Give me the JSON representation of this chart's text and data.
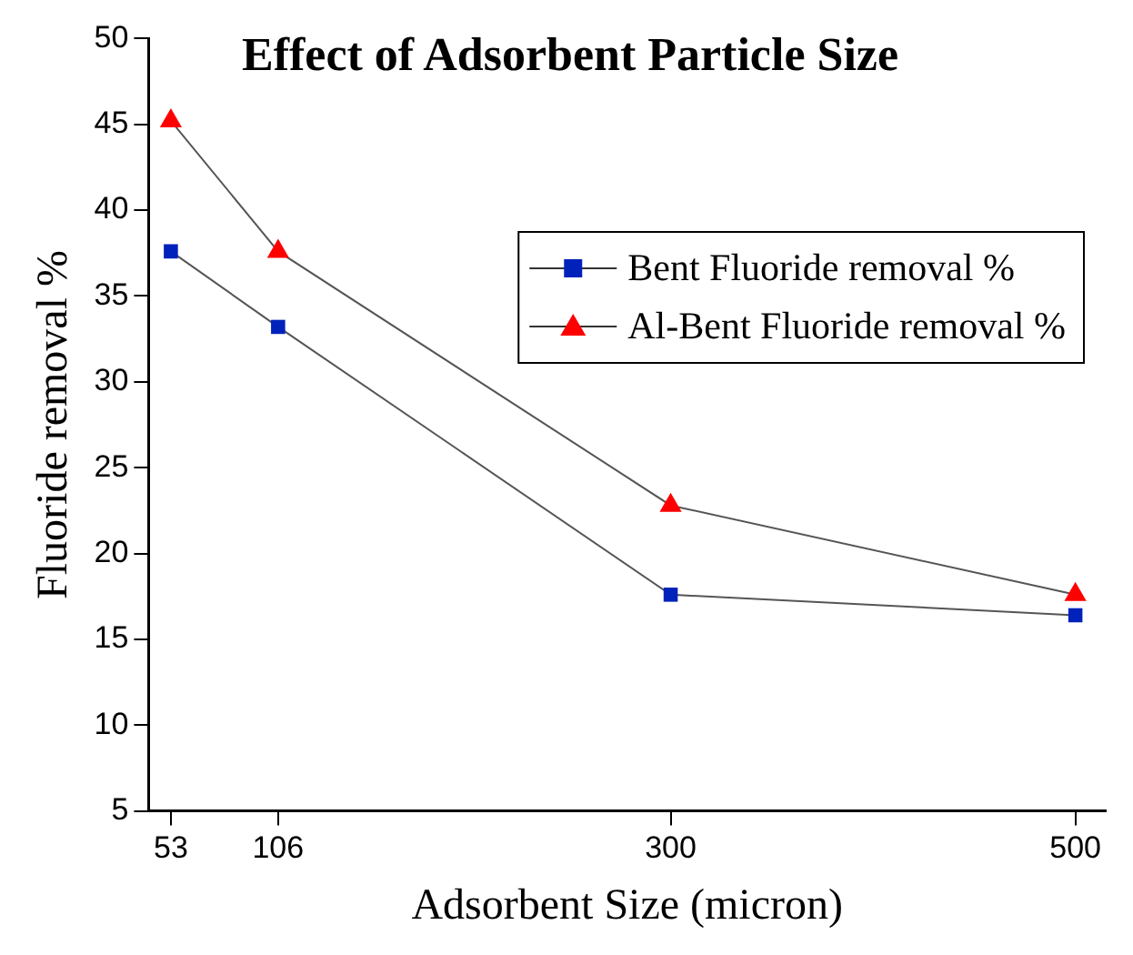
{
  "chart_data": {
    "type": "line",
    "title": "Effect of Adsorbent Particle Size",
    "xlabel": "Adsorbent Size (micron)",
    "ylabel": "Fluoride removal %",
    "x": [
      53,
      106,
      300,
      500
    ],
    "series": [
      {
        "name": "Bent Fluoride removal %",
        "color": "#0022bb",
        "values": [
          37.6,
          33.2,
          17.6,
          16.4
        ],
        "marker": "square"
      },
      {
        "name": "Al-Bent Fluoride removal %",
        "color": "#ff0000",
        "values": [
          45.2,
          37.6,
          22.8,
          17.6
        ],
        "marker": "triangle"
      }
    ],
    "xlim": [
      42,
      515
    ],
    "xticks": [
      53,
      106,
      300,
      500
    ],
    "ylim": [
      5,
      50
    ],
    "yticks": [
      5,
      10,
      15,
      20,
      25,
      30,
      35,
      40,
      45,
      50
    ],
    "grid": false,
    "legend": "right",
    "line_style": "solid"
  }
}
